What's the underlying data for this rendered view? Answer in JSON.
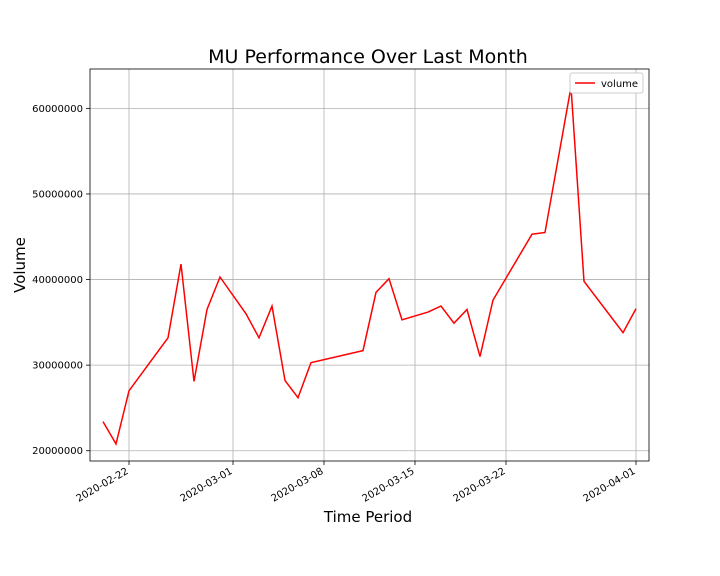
{
  "chart_data": {
    "type": "line",
    "title": "MU Performance Over Last Month",
    "xlabel": "Time Period",
    "ylabel": "Volume",
    "x_ticks": [
      "2020-02-22",
      "2020-03-01",
      "2020-03-08",
      "2020-03-15",
      "2020-03-22",
      "2020-04-01"
    ],
    "y_ticks": [
      20000000,
      30000000,
      40000000,
      50000000,
      60000000
    ],
    "y_tick_labels": [
      "20000000",
      "30000000",
      "40000000",
      "50000000",
      "60000000"
    ],
    "xlim": [
      "2020-02-19",
      "2020-04-02"
    ],
    "ylim": [
      18800000,
      64600000
    ],
    "grid": true,
    "legend_position": "upper right",
    "series": [
      {
        "name": "volume",
        "color": "#ff0000",
        "points": [
          {
            "x": "2020-02-20",
            "y": 23400000
          },
          {
            "x": "2020-02-21",
            "y": 20800000
          },
          {
            "x": "2020-02-22",
            "y": 27000000
          },
          {
            "x": "2020-02-25",
            "y": 33200000
          },
          {
            "x": "2020-02-26",
            "y": 41800000
          },
          {
            "x": "2020-02-27",
            "y": 28100000
          },
          {
            "x": "2020-02-28",
            "y": 36500000
          },
          {
            "x": "2020-02-29",
            "y": 40300000
          },
          {
            "x": "2020-03-02",
            "y": 36000000
          },
          {
            "x": "2020-03-03",
            "y": 33200000
          },
          {
            "x": "2020-03-04",
            "y": 36900000
          },
          {
            "x": "2020-03-05",
            "y": 28200000
          },
          {
            "x": "2020-03-06",
            "y": 26200000
          },
          {
            "x": "2020-03-07",
            "y": 30300000
          },
          {
            "x": "2020-03-11",
            "y": 31700000
          },
          {
            "x": "2020-03-12",
            "y": 38500000
          },
          {
            "x": "2020-03-13",
            "y": 40100000
          },
          {
            "x": "2020-03-14",
            "y": 35300000
          },
          {
            "x": "2020-03-16",
            "y": 36200000
          },
          {
            "x": "2020-03-17",
            "y": 36900000
          },
          {
            "x": "2020-03-18",
            "y": 34900000
          },
          {
            "x": "2020-03-19",
            "y": 36500000
          },
          {
            "x": "2020-03-20",
            "y": 31000000
          },
          {
            "x": "2020-03-21",
            "y": 37600000
          },
          {
            "x": "2020-03-24",
            "y": 45300000
          },
          {
            "x": "2020-03-25",
            "y": 45500000
          },
          {
            "x": "2020-03-27",
            "y": 62500000
          },
          {
            "x": "2020-03-28",
            "y": 39800000
          },
          {
            "x": "2020-03-31",
            "y": 33800000
          },
          {
            "x": "2020-04-01",
            "y": 36600000
          }
        ]
      }
    ]
  }
}
